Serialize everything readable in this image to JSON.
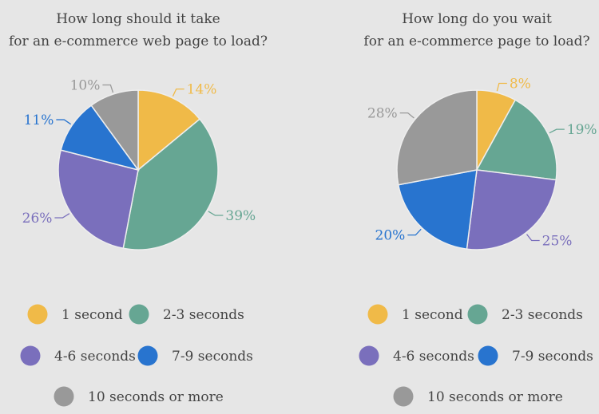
{
  "colors": {
    "1 second": "#F0BA48",
    "2-3 seconds": "#66A693",
    "4-6 seconds": "#7A6FBC",
    "7-9 seconds": "#2874CF",
    "10 seconds or more": "#999999"
  },
  "legend": [
    "1 second",
    "2-3 seconds",
    "4-6 seconds",
    "7-9 seconds",
    "10 seconds or more"
  ],
  "chart_data": [
    {
      "type": "pie",
      "title": [
        "How long should it take",
        "for an e-commerce web page to load?"
      ],
      "categories": [
        "1 second",
        "2-3 seconds",
        "4-6 seconds",
        "7-9 seconds",
        "10 seconds or more"
      ],
      "values": [
        14,
        39,
        26,
        11,
        10
      ],
      "labels": [
        "14%",
        "39%",
        "26%",
        "11%",
        "10%"
      ],
      "legend_position": "bottom"
    },
    {
      "type": "pie",
      "title": [
        "How long do you wait",
        "for an e-commerce page to load?"
      ],
      "categories": [
        "1 second",
        "2-3 seconds",
        "4-6 seconds",
        "7-9 seconds",
        "10 seconds or more"
      ],
      "values": [
        8,
        19,
        25,
        20,
        28
      ],
      "labels": [
        "8%",
        "19%",
        "25%",
        "20%",
        "28%"
      ],
      "legend_position": "bottom"
    }
  ]
}
